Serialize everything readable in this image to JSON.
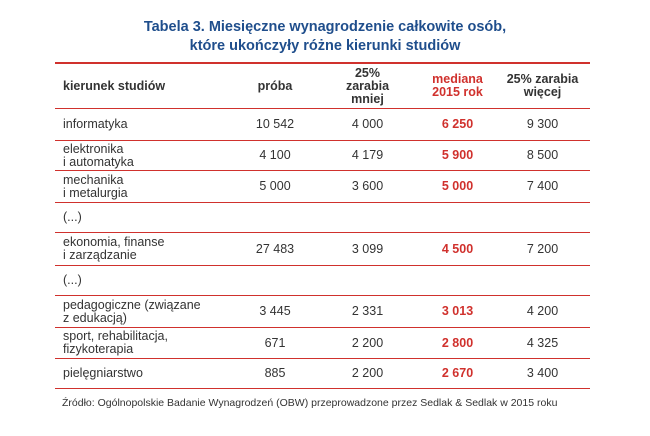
{
  "title": [
    "Tabela 3. Miesięczne wynagrodzenie całkowite osób,",
    "które ukończyły różne kierunki studiów"
  ],
  "table": {
    "header": [
      "kierunek studiów",
      "próba",
      "25%\nzarabia\nmniej",
      "mediana\n2015 rok",
      "25% zarabia\nwięcej"
    ],
    "rows": [
      [
        "informatyka",
        "10 542",
        "4 000",
        "6 250",
        "9 300"
      ],
      [
        "elektronika\ni automatyka",
        "4 100",
        "4 179",
        "5 900",
        "8 500"
      ],
      [
        "mechanika\ni metalurgia",
        "5 000",
        "3 600",
        "5 000",
        "7 400"
      ],
      [
        "(...)"
      ],
      [
        "ekonomia, finanse\ni zarządzanie",
        "27 483",
        "3 099",
        "4 500",
        "7 200"
      ],
      [
        "(...)"
      ],
      [
        "pedagogiczne (związane\nz edukacją)",
        "3 445",
        "2 331",
        "3 013",
        "4 200"
      ],
      [
        "sport, rehabilitacja,\nfizykoterapia",
        "671",
        "2 200",
        "2 800",
        "4 325"
      ],
      [
        "pielęgniarstwo",
        "885",
        "2 200",
        "2 670",
        "3 400"
      ]
    ]
  },
  "source": "Źródło: Ogólnopolskie Badanie Wynagrodzeń (OBW) przeprowadzone przez Sedlak & Sedlak w 2015 roku"
}
